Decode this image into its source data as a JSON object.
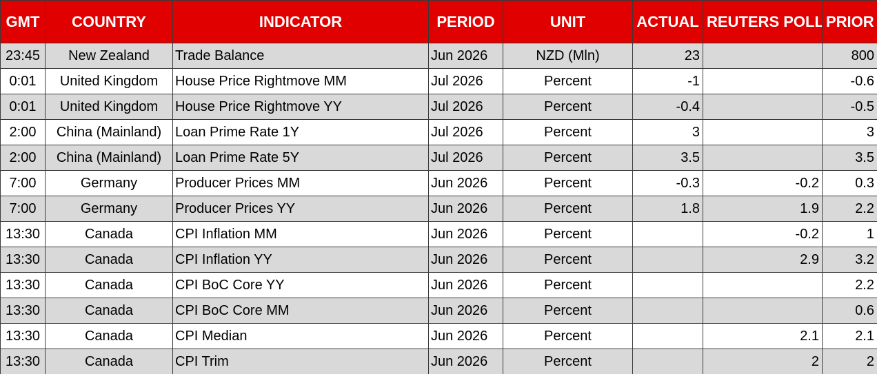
{
  "table": {
    "header": [
      "GMT",
      "COUNTRY",
      "INDICATOR",
      "PERIOD",
      "UNIT",
      "ACTUAL",
      "REUTERS POLL",
      "PRIOR"
    ],
    "rows": [
      [
        "23:45",
        "New Zealand",
        "Trade Balance",
        "Jun 2026",
        "NZD (Mln)",
        "23",
        null,
        "800"
      ],
      [
        "0:01",
        "United Kingdom",
        "House Price Rightmove MM",
        "Jul 2026",
        "Percent",
        "-1",
        null,
        "-0.6"
      ],
      [
        "0:01",
        "United Kingdom",
        "House Price Rightmove YY",
        "Jul 2026",
        "Percent",
        "-0.4",
        null,
        "-0.5"
      ],
      [
        "2:00",
        "China (Mainland)",
        "Loan Prime Rate 1Y",
        "Jul 2026",
        "Percent",
        "3",
        null,
        "3"
      ],
      [
        "2:00",
        "China (Mainland)",
        "Loan Prime Rate 5Y",
        "Jul 2026",
        "Percent",
        "3.5",
        null,
        "3.5"
      ],
      [
        "7:00",
        "Germany",
        "Producer Prices MM",
        "Jun 2026",
        "Percent",
        "-0.3",
        "-0.2",
        "0.3"
      ],
      [
        "7:00",
        "Germany",
        "Producer Prices YY",
        "Jun 2026",
        "Percent",
        "1.8",
        "1.9",
        "2.2"
      ],
      [
        "13:30",
        "Canada",
        "CPI Inflation MM",
        "Jun 2026",
        "Percent",
        null,
        "-0.2",
        "1"
      ],
      [
        "13:30",
        "Canada",
        "CPI Inflation YY",
        "Jun 2026",
        "Percent",
        null,
        "2.9",
        "3.2"
      ],
      [
        "13:30",
        "Canada",
        "CPI BoC Core YY",
        "Jun 2026",
        "Percent",
        null,
        null,
        "2.2"
      ],
      [
        "13:30",
        "Canada",
        "CPI BoC Core MM",
        "Jun 2026",
        "Percent",
        null,
        null,
        "0.6"
      ],
      [
        "13:30",
        "Canada",
        "CPI Median",
        "Jun 2026",
        "Percent",
        null,
        "2.1",
        "2.1"
      ],
      [
        "13:30",
        "Canada",
        "CPI Trim",
        "Jun 2026",
        "Percent",
        null,
        "2",
        "2"
      ]
    ]
  }
}
